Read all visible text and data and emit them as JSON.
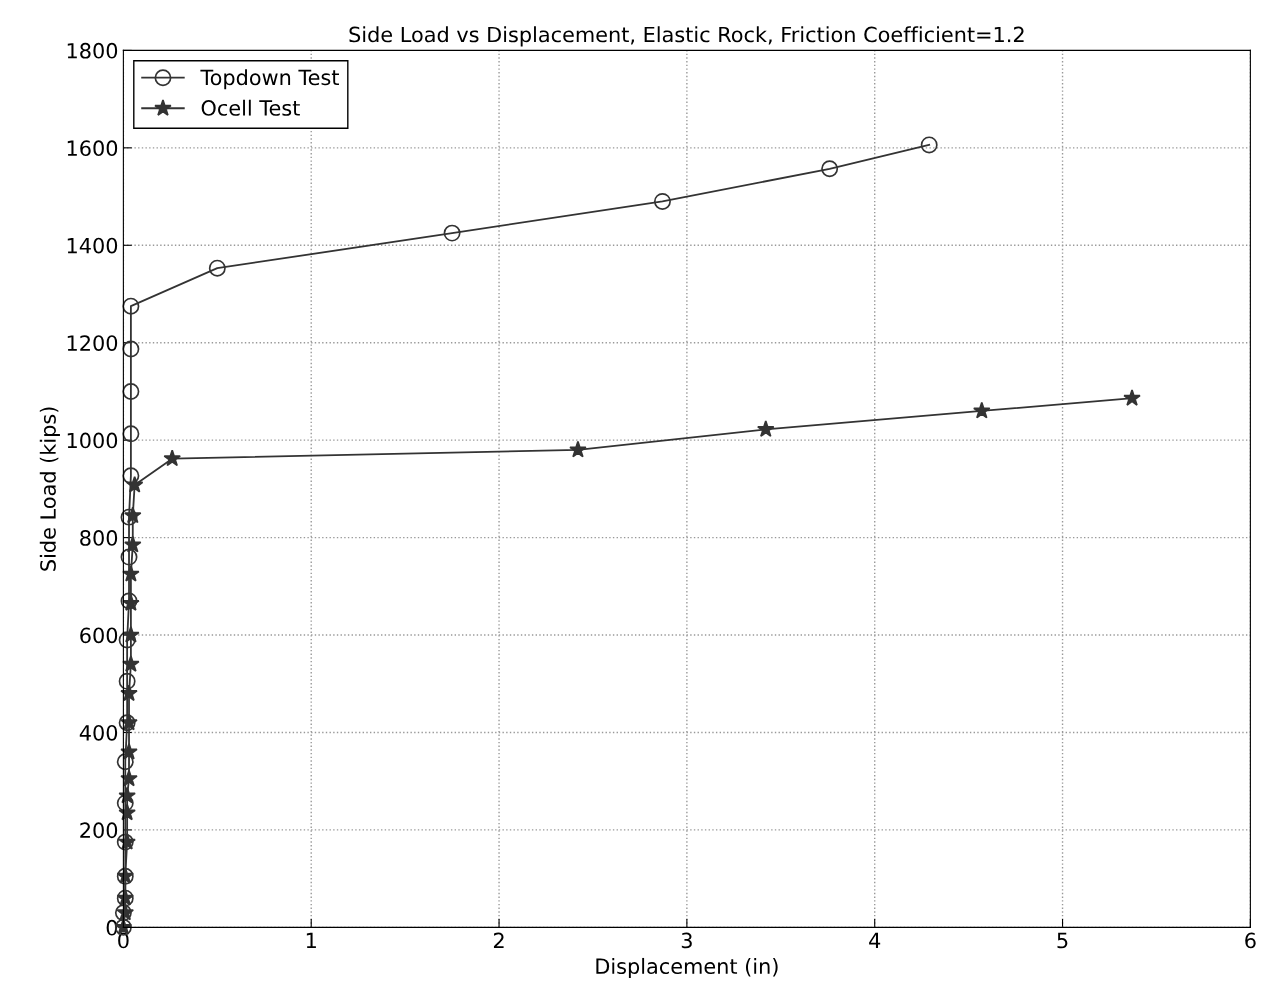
{
  "chart_data": {
    "type": "line",
    "title": "Side Load vs Displacement, Elastic Rock, Friction Coefficient=1.2",
    "xlabel": "Displacement (in)",
    "ylabel": "Side Load (kips)",
    "xlim": [
      0,
      6
    ],
    "ylim": [
      0,
      1800
    ],
    "xticks": [
      0,
      1,
      2,
      3,
      4,
      5,
      6
    ],
    "yticks": [
      0,
      200,
      400,
      600,
      800,
      1000,
      1200,
      1400,
      1600,
      1800
    ],
    "grid": true,
    "legend": "top left",
    "line_style": "solid",
    "series": [
      {
        "name": "Topdown Test",
        "color": "#333333",
        "marker": "circle",
        "x": [
          0,
          0.0,
          0.01,
          0.01,
          0.01,
          0.01,
          0.01,
          0.02,
          0.02,
          0.02,
          0.03,
          0.03,
          0.03,
          0.04,
          0.04,
          0.04,
          0.04,
          0.04,
          0.5,
          1.75,
          2.87,
          3.76,
          4.29
        ],
        "values": [
          0,
          30,
          60,
          105,
          175,
          255,
          340,
          420,
          505,
          590,
          670,
          760,
          842,
          927,
          1013,
          1100,
          1187,
          1275,
          1353,
          1425,
          1490,
          1557,
          1606
        ]
      },
      {
        "name": "Ocell Test",
        "color": "#333333",
        "marker": "star",
        "x": [
          0,
          0.01,
          0.01,
          0.01,
          0.02,
          0.02,
          0.02,
          0.03,
          0.03,
          0.03,
          0.03,
          0.04,
          0.04,
          0.04,
          0.04,
          0.05,
          0.05,
          0.06,
          0.26,
          2.42,
          3.42,
          4.57,
          5.37
        ],
        "values": [
          0,
          30,
          60,
          105,
          175,
          235,
          270,
          305,
          360,
          420,
          480,
          540,
          600,
          665,
          725,
          785,
          845,
          908,
          962,
          980,
          1022,
          1060,
          1086
        ]
      }
    ]
  }
}
